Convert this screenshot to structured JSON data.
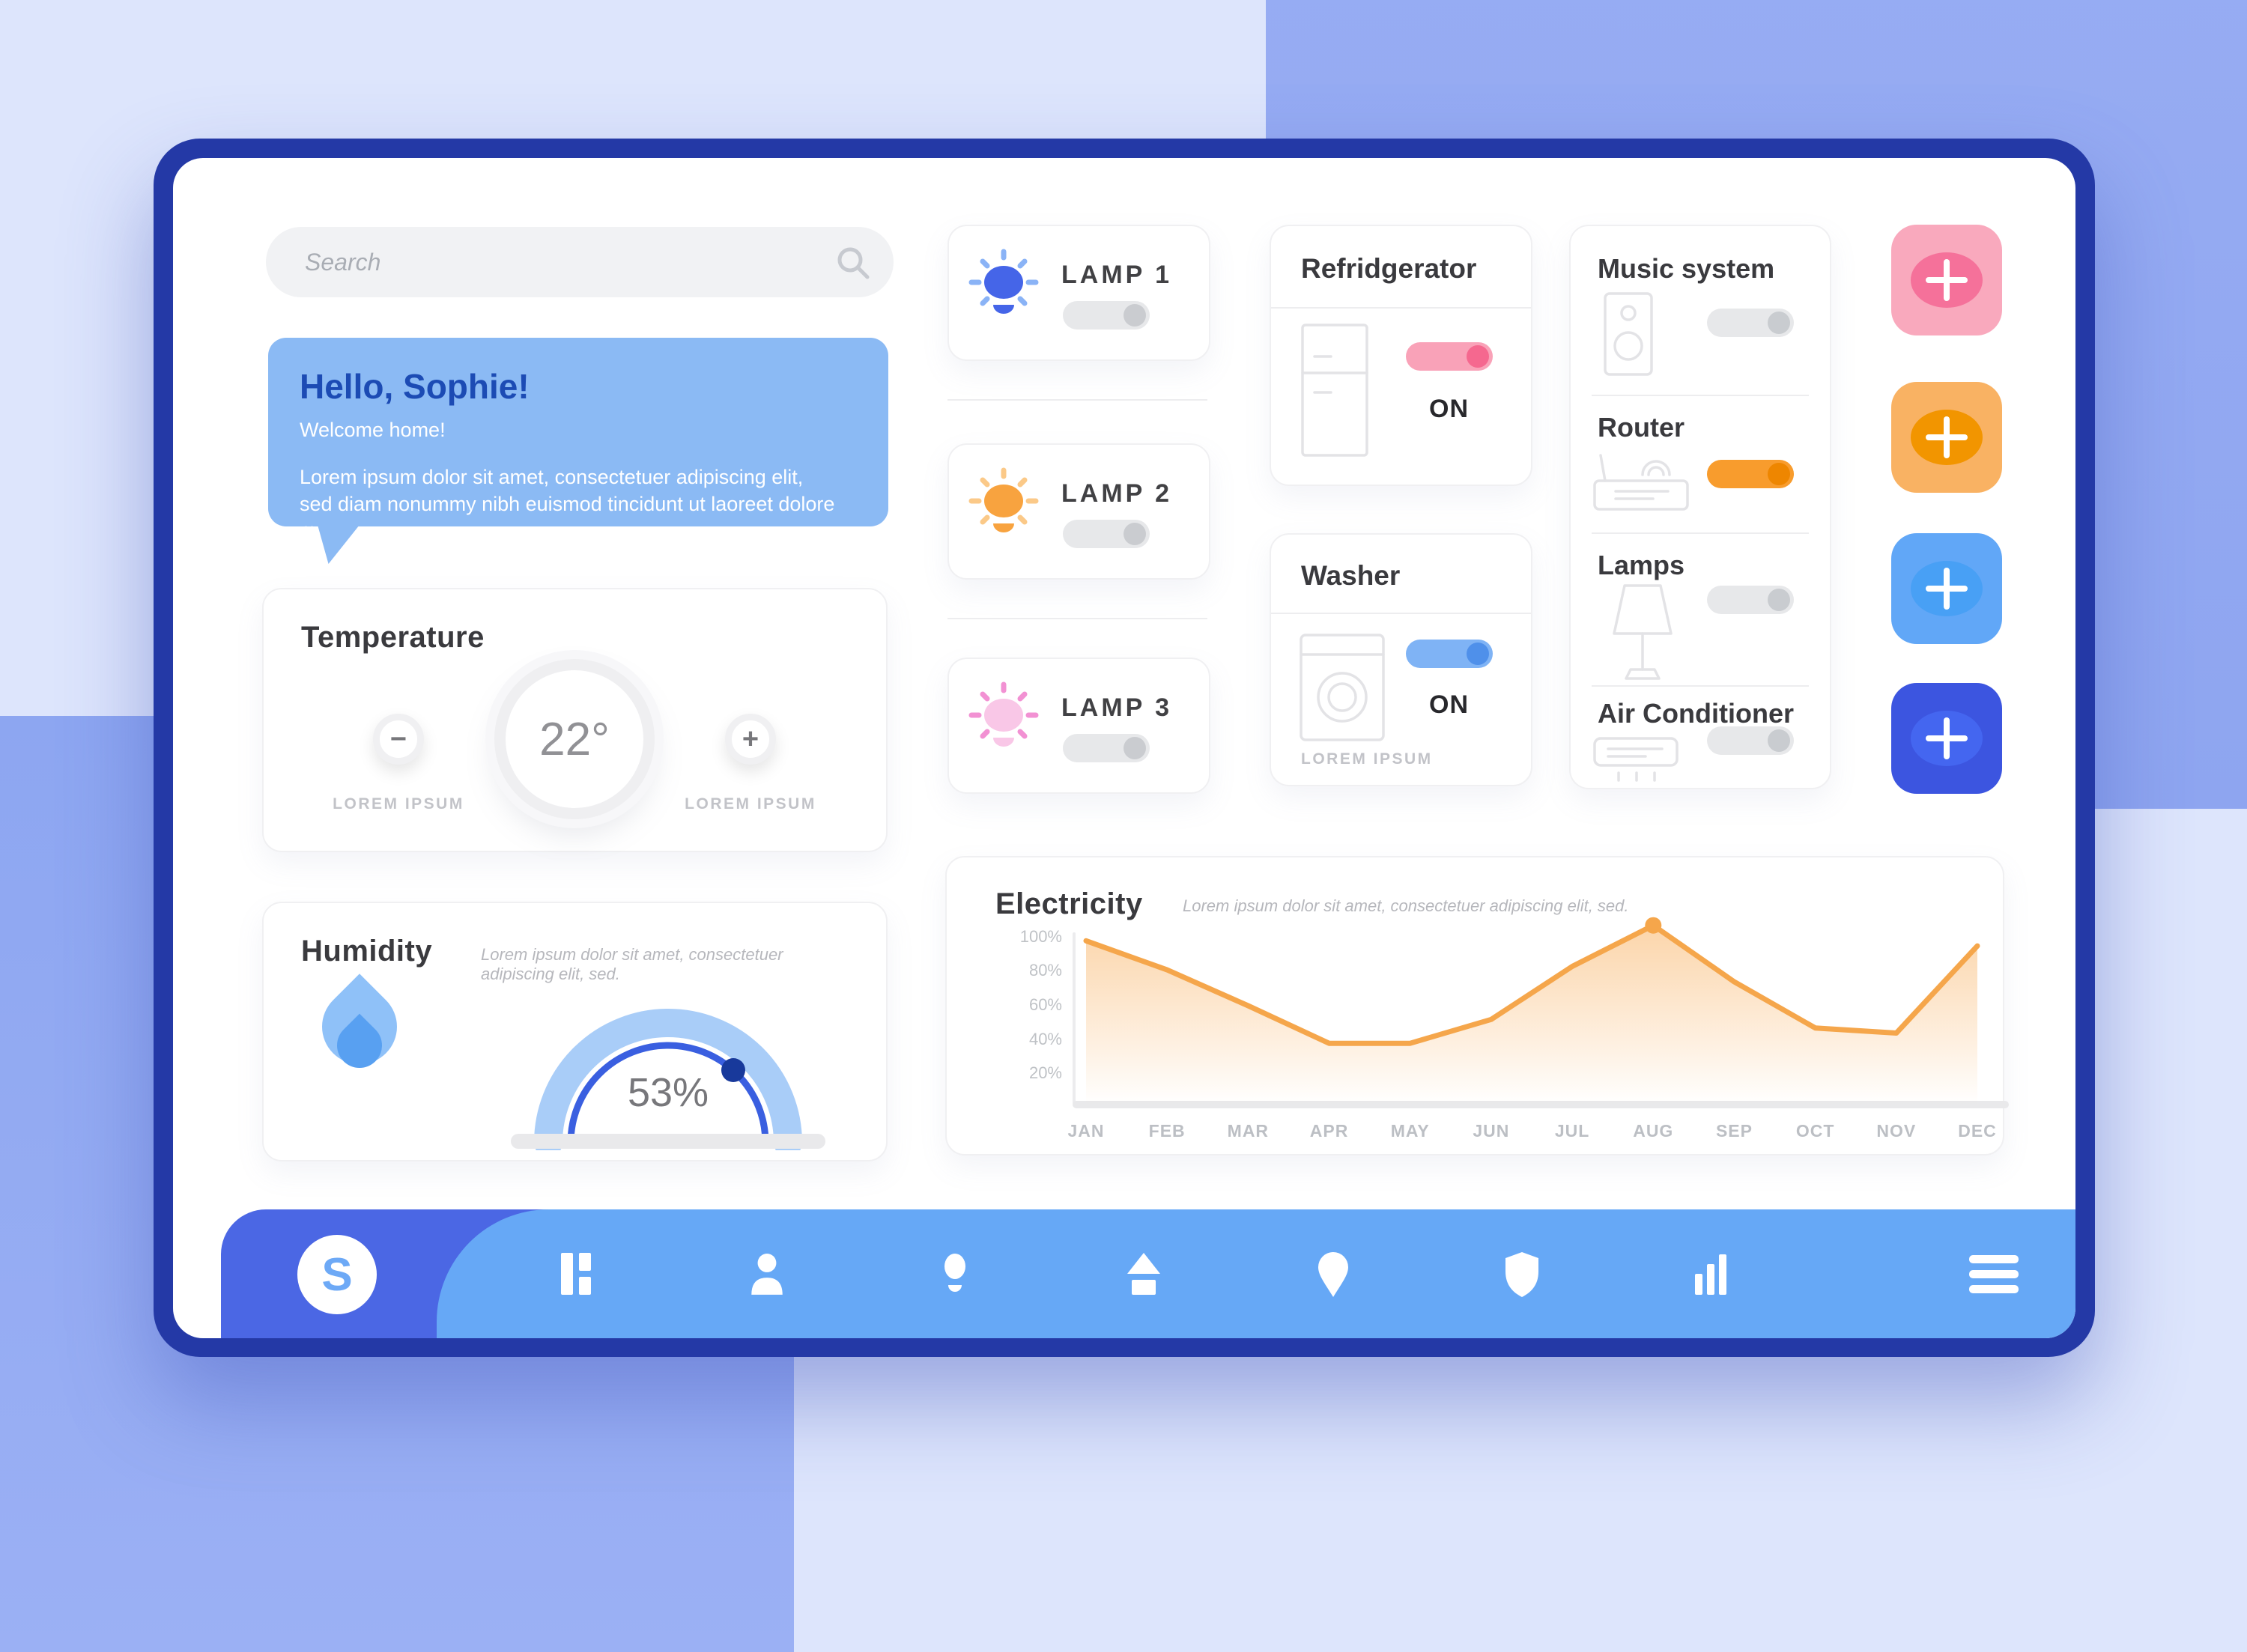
{
  "search": {
    "placeholder": "Search"
  },
  "greeting": {
    "title": "Hello, Sophie!",
    "subtitle": "Welcome home!",
    "body": "Lorem ipsum dolor sit amet, consectetuer adipiscing elit, sed diam nonummy nibh euismod tincidunt ut laoreet dolore magna."
  },
  "temperature": {
    "title": "Temperature",
    "value": "22°",
    "decrease_icon": "−",
    "increase_icon": "+",
    "decrease_label": "LOREM IPSUM",
    "increase_label": "LOREM IPSUM"
  },
  "humidity": {
    "title": "Humidity",
    "subtitle": "Lorem ipsum dolor sit amet, consectetuer adipiscing elit, sed.",
    "value": "53%"
  },
  "lamp_cards": [
    {
      "label": "LAMP 1",
      "state": "off",
      "bulb_color": "#4565e8",
      "ray_color": "#8ab3f6"
    },
    {
      "label": "LAMP 2",
      "state": "off",
      "bulb_color": "#f8a33f",
      "ray_color": "#fbc988"
    },
    {
      "label": "LAMP 3",
      "state": "off",
      "bulb_color": "#f9c7e7",
      "ray_color": "#f291d3"
    }
  ],
  "appliance_cards": [
    {
      "title": "Refridgerator",
      "status": "ON",
      "state": "on",
      "toggle": {
        "track": "#f9a2b8",
        "knob": "#f5688f"
      }
    },
    {
      "title": "Washer",
      "status": "ON",
      "state": "on",
      "footnote": "LOREM IPSUM",
      "toggle": {
        "track": "#7fb3f5",
        "knob": "#4f90ea"
      }
    }
  ],
  "device_panel": {
    "rows": [
      {
        "title": "Music system",
        "state": "off",
        "toggle": {
          "track": "#e7e8ea",
          "knob": "#c9ccd0"
        }
      },
      {
        "title": "Router",
        "state": "on",
        "toggle": {
          "track": "#f89c2d",
          "knob": "#ee8600"
        }
      },
      {
        "title": "Lamps",
        "state": "off",
        "toggle": {
          "track": "#e7e8ea",
          "knob": "#c9ccd0"
        }
      },
      {
        "title": "Air Conditioner",
        "state": "off",
        "toggle": {
          "track": "#e7e8ea",
          "knob": "#c9ccd0"
        }
      }
    ]
  },
  "add_buttons": [
    {
      "color": "#f9a9bd",
      "inner_color": "#f5719a"
    },
    {
      "color": "#f9b263",
      "inner_color": "#f29500"
    },
    {
      "color": "#61a7f7",
      "inner_color": "#48a0f5"
    },
    {
      "color": "#3c55e0",
      "inner_color": "#4466f0"
    }
  ],
  "electricity": {
    "title": "Electricity",
    "subtitle": "Lorem ipsum dolor sit amet, consectetuer adipiscing elit, sed.",
    "chart_data": {
      "type": "area",
      "categories": [
        "JAN",
        "FEB",
        "MAR",
        "APR",
        "MAY",
        "JUN",
        "JUL",
        "AUG",
        "SEP",
        "OCT",
        "NOV",
        "DEC"
      ],
      "values": [
        98,
        81,
        60,
        38,
        38,
        52,
        83,
        107,
        74,
        47,
        44,
        95
      ],
      "y_ticks": [
        "100%",
        "80%",
        "60%",
        "40%",
        "20%"
      ],
      "ylim": [
        0,
        110
      ],
      "grid": false,
      "line_color": "#f5a64b",
      "fill_color": "#f8ab55",
      "marker": {
        "category": "AUG",
        "value": 107
      }
    }
  },
  "nav": {
    "logo": "S",
    "icons": [
      "layout-icon",
      "person-icon",
      "bulb-icon",
      "home-icon",
      "pin-icon",
      "shield-icon",
      "bar-chart-icon",
      "menu-icon"
    ]
  },
  "colors": {
    "background": "#dde5fc",
    "background_accent": "#93a9f1",
    "frame": "#2439a6",
    "nav_dark": "#4b67e4",
    "nav_light": "#66a8f6",
    "greeting_card": "#8bbaf4",
    "greeting_title": "#1c4bb4"
  }
}
